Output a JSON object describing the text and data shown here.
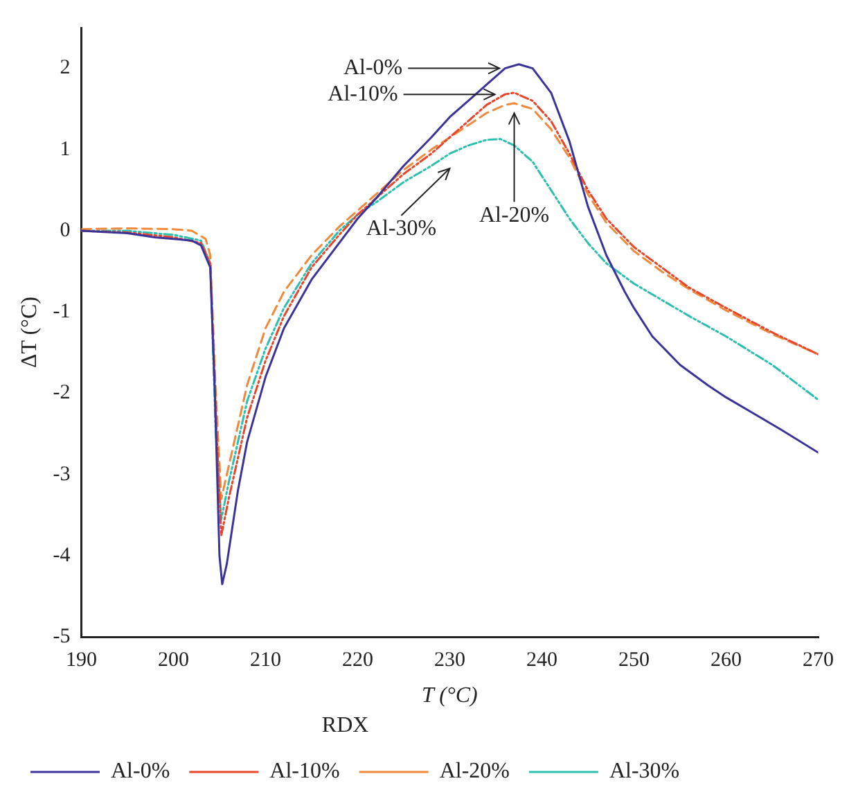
{
  "chart_data": {
    "type": "line",
    "xlabel": "T (°C)",
    "ylabel": "ΔT (°C)",
    "legend_title": "RDX",
    "legend": "bottom",
    "grid": false,
    "marker": "none",
    "xlim": [
      190,
      270
    ],
    "xticks": [
      190,
      200,
      210,
      220,
      230,
      240,
      250,
      260,
      270
    ],
    "ylim": [
      -5,
      2.5
    ],
    "yticks": [
      -5,
      -4,
      -3,
      -2,
      -1,
      0,
      1,
      2
    ],
    "series": [
      {
        "name": "Al-0%",
        "color": "#3b3399",
        "line_style": "solid",
        "x": [
          190,
          195,
          198,
          200,
          202,
          203,
          204,
          204.5,
          205,
          205.3,
          205.8,
          207,
          208,
          210,
          212,
          215,
          218,
          220,
          222,
          225,
          228,
          230,
          232,
          234,
          236,
          237.5,
          239,
          241,
          243,
          245,
          247,
          249,
          250,
          252,
          255,
          258,
          260,
          263,
          266,
          270
        ],
        "values": [
          0,
          -0.03,
          -0.08,
          -0.1,
          -0.12,
          -0.18,
          -0.45,
          -2,
          -4,
          -4.35,
          -4.1,
          -3.2,
          -2.6,
          -1.8,
          -1.2,
          -0.6,
          -0.15,
          0.15,
          0.4,
          0.8,
          1.15,
          1.4,
          1.6,
          1.8,
          2,
          2.05,
          2,
          1.7,
          1.1,
          0.3,
          -0.3,
          -0.75,
          -0.95,
          -1.3,
          -1.65,
          -1.9,
          -2.05,
          -2.25,
          -2.45,
          -2.73
        ]
      },
      {
        "name": "Al-10%",
        "color": "#e8452b",
        "line_style": "dotted",
        "x": [
          190,
          195,
          200,
          203,
          204,
          204.7,
          205.2,
          206,
          208,
          210,
          212,
          215,
          218,
          220,
          222,
          225,
          228,
          230,
          232,
          234,
          236,
          237,
          239,
          241,
          243,
          245,
          247,
          250,
          253,
          256,
          260,
          265,
          270
        ],
        "values": [
          0,
          -0.02,
          -0.08,
          -0.15,
          -0.4,
          -2.5,
          -3.75,
          -3.3,
          -2.3,
          -1.6,
          -1.05,
          -0.45,
          -0.05,
          0.2,
          0.4,
          0.7,
          0.95,
          1.15,
          1.35,
          1.55,
          1.68,
          1.7,
          1.6,
          1.35,
          0.95,
          0.5,
          0.15,
          -0.2,
          -0.45,
          -0.7,
          -0.95,
          -1.25,
          -1.52
        ]
      },
      {
        "name": "Al-20%",
        "color": "#f08a3a",
        "line_style": "dashed",
        "x": [
          190,
          195,
          200,
          202,
          203.5,
          204,
          204.6,
          205.2,
          206,
          208,
          210,
          212,
          215,
          218,
          220,
          222,
          225,
          228,
          230,
          232,
          234,
          236,
          237,
          239,
          241,
          243,
          245,
          247,
          250,
          253,
          256,
          260,
          265,
          270
        ],
        "values": [
          0.02,
          0.03,
          0.02,
          0,
          -0.1,
          -0.3,
          -2,
          -3.3,
          -2.9,
          -1.9,
          -1.2,
          -0.75,
          -0.3,
          0.05,
          0.25,
          0.45,
          0.75,
          1,
          1.15,
          1.3,
          1.45,
          1.55,
          1.57,
          1.5,
          1.25,
          0.9,
          0.45,
          0.1,
          -0.25,
          -0.5,
          -0.72,
          -0.98,
          -1.27,
          -1.52
        ]
      },
      {
        "name": "Al-30%",
        "color": "#2bbfb0",
        "line_style": "dotted",
        "x": [
          190,
          195,
          200,
          203,
          204,
          204.6,
          205.2,
          206,
          208,
          210,
          212,
          215,
          218,
          220,
          222,
          225,
          228,
          230,
          232,
          234,
          235.5,
          237,
          239,
          241,
          243,
          245,
          247,
          250,
          253,
          256,
          260,
          265,
          270
        ],
        "values": [
          0,
          0,
          -0.05,
          -0.12,
          -0.4,
          -2.5,
          -3.55,
          -3.1,
          -2.1,
          -1.45,
          -0.95,
          -0.4,
          0,
          0.2,
          0.35,
          0.6,
          0.8,
          0.95,
          1.05,
          1.12,
          1.13,
          1.05,
          0.85,
          0.5,
          0.15,
          -0.15,
          -0.4,
          -0.65,
          -0.85,
          -1.05,
          -1.3,
          -1.65,
          -2.08
        ]
      }
    ],
    "annotations": [
      {
        "text": "Al-0%",
        "x": 236,
        "y": 2
      },
      {
        "text": "Al-10%",
        "x": 235.5,
        "y": 1.68
      },
      {
        "text": "Al-20%",
        "x": 237,
        "y": 1.55
      },
      {
        "text": "Al-30%",
        "x": 230,
        "y": 0.87
      }
    ]
  }
}
